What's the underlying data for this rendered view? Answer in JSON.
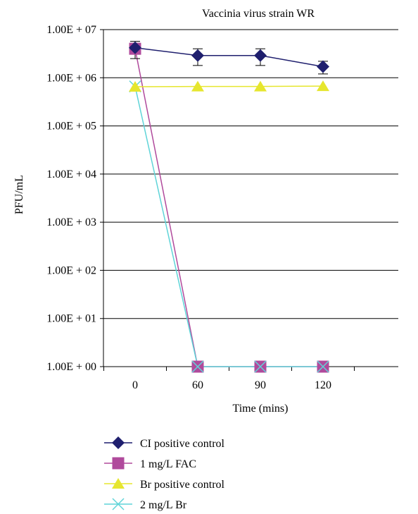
{
  "chart_data": {
    "type": "line",
    "title": "Vaccinia virus strain WR",
    "xlabel": "Time (mins)",
    "ylabel": "PFU/mL",
    "y_scale": "log",
    "ylim": [
      1,
      10000000
    ],
    "categories": [
      "0",
      "60",
      "90",
      "120"
    ],
    "y_tick_labels": [
      "1.00E + 00",
      "1.00E + 01",
      "1.00E + 02",
      "1.00E + 03",
      "1.00E + 04",
      "1.00E + 05",
      "1.00E + 06",
      "1.00E + 07"
    ],
    "grid": true,
    "legend_position": "bottom",
    "series": [
      {
        "name": "CI positive control",
        "color": "#1f1f6e",
        "marker": "diamond",
        "values": [
          4200000,
          2900000,
          2900000,
          1700000
        ],
        "error_low": [
          2500000,
          1800000,
          1800000,
          1200000
        ],
        "error_high": [
          5700000,
          4000000,
          4000000,
          2200000
        ]
      },
      {
        "name": "1 mg/L FAC",
        "color": "#b04a9c",
        "marker": "square",
        "values": [
          4000000,
          1,
          1,
          1
        ]
      },
      {
        "name": "Br positive control",
        "color": "#e6e62e",
        "marker": "triangle",
        "values": [
          650000,
          660000,
          660000,
          670000
        ]
      },
      {
        "name": "2 mg/L Br",
        "color": "#5fd4d8",
        "marker": "x",
        "values": [
          660000,
          1,
          1,
          1
        ]
      }
    ]
  }
}
